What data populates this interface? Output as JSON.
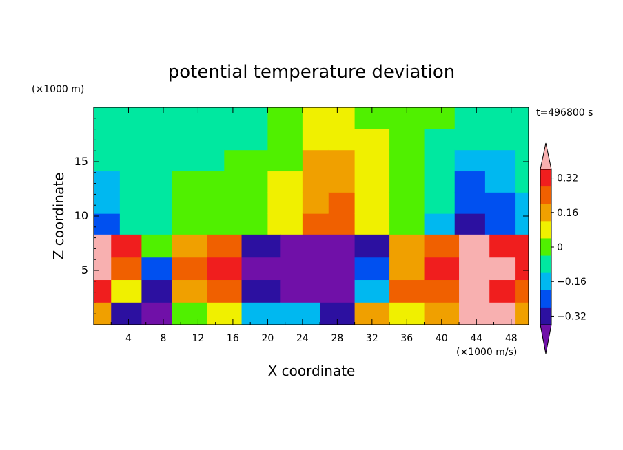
{
  "chart_data": {
    "type": "heatmap",
    "title": "potential temperature deviation",
    "xlabel": "X coordinate",
    "ylabel": "Z coordinate",
    "x_unit": "(×1000 m/s)",
    "y_unit": "(×1000 m)",
    "time_label": "t=496800 s",
    "xlim": [
      0,
      50
    ],
    "ylim": [
      0,
      20
    ],
    "x_ticks": [
      "4",
      "8",
      "12",
      "16",
      "20",
      "24",
      "28",
      "32",
      "36",
      "40",
      "44",
      "48"
    ],
    "x_tick_values": [
      4,
      8,
      12,
      16,
      20,
      24,
      28,
      32,
      36,
      40,
      44,
      48
    ],
    "y_ticks": [
      "5",
      "10",
      "15"
    ],
    "y_tick_values": [
      5,
      10,
      15
    ],
    "colorbar": {
      "levels": [
        -0.4,
        -0.32,
        -0.24,
        -0.16,
        -0.08,
        0,
        0.08,
        0.16,
        0.24,
        0.32,
        0.4
      ],
      "tick_labels": [
        "0.32",
        "0.16",
        "0",
        "−0.16",
        "−0.32"
      ],
      "tick_values": [
        0.32,
        0.16,
        0,
        -0.16,
        -0.32
      ],
      "colors": [
        "#7010a8",
        "#2c10a0",
        "#0050f0",
        "#00b8f0",
        "#00e8a0",
        "#50f000",
        "#f0f000",
        "#f0a000",
        "#f06000",
        "#f01e1e",
        "#f8b0b0"
      ]
    },
    "fields": {
      "upper_layer": {
        "z_range": [
          8.3,
          20
        ],
        "columns": [
          {
            "x": 0,
            "values": [
              -0.24,
              -0.16,
              -0.16,
              -0.08,
              -0.08,
              -0.08
            ]
          },
          {
            "x": 6,
            "values": [
              -0.08,
              -0.08,
              -0.08,
              -0.08,
              -0.08,
              -0.08
            ]
          },
          {
            "x": 12,
            "values": [
              0,
              0,
              0,
              -0.08,
              -0.08,
              -0.08
            ]
          },
          {
            "x": 18,
            "values": [
              0,
              0,
              0,
              0,
              -0.08,
              -0.08
            ]
          },
          {
            "x": 22,
            "values": [
              0.08,
              0.08,
              0.08,
              0,
              0,
              0
            ]
          },
          {
            "x": 26,
            "values": [
              0.24,
              0.16,
              0.16,
              0.16,
              0.08,
              0.08
            ]
          },
          {
            "x": 28,
            "values": [
              0.24,
              0.24,
              0.16,
              0.16,
              0.08,
              0.08
            ]
          },
          {
            "x": 32,
            "values": [
              0.08,
              0.08,
              0.08,
              0.08,
              0.08,
              0
            ]
          },
          {
            "x": 36,
            "values": [
              0,
              0,
              0,
              0,
              0,
              0
            ]
          },
          {
            "x": 40,
            "values": [
              -0.16,
              -0.08,
              -0.08,
              -0.08,
              -0.08,
              0
            ]
          },
          {
            "x": 43,
            "values": [
              -0.32,
              -0.24,
              -0.24,
              -0.16,
              -0.08,
              -0.08
            ]
          },
          {
            "x": 47,
            "values": [
              -0.24,
              -0.24,
              -0.16,
              -0.16,
              -0.08,
              -0.08
            ]
          },
          {
            "x": 50,
            "values": [
              -0.16,
              -0.16,
              -0.08,
              -0.08,
              -0.08,
              -0.08
            ]
          }
        ]
      },
      "lower_layer": {
        "z_range": [
          0,
          8.3
        ],
        "columns": [
          {
            "x": 0,
            "values": [
              0.16,
              0.32,
              0.4,
              0.4
            ]
          },
          {
            "x": 4,
            "values": [
              -0.32,
              0.08,
              0.24,
              0.32
            ]
          },
          {
            "x": 7,
            "values": [
              -0.4,
              -0.32,
              -0.24,
              0
            ]
          },
          {
            "x": 11,
            "values": [
              0,
              0.16,
              0.24,
              0.16
            ]
          },
          {
            "x": 15,
            "values": [
              0.08,
              0.24,
              0.32,
              0.24
            ]
          },
          {
            "x": 19,
            "values": [
              -0.16,
              -0.32,
              -0.4,
              -0.32
            ]
          },
          {
            "x": 24,
            "values": [
              -0.16,
              -0.4,
              -0.4,
              -0.4
            ]
          },
          {
            "x": 28,
            "values": [
              -0.32,
              -0.4,
              -0.4,
              -0.4
            ]
          },
          {
            "x": 32,
            "values": [
              0.16,
              -0.16,
              -0.24,
              -0.32
            ]
          },
          {
            "x": 36,
            "values": [
              0.08,
              0.24,
              0.16,
              0.16
            ]
          },
          {
            "x": 40,
            "values": [
              0.16,
              0.24,
              0.32,
              0.24
            ]
          },
          {
            "x": 44,
            "values": [
              0.4,
              0.4,
              0.4,
              0.4
            ]
          },
          {
            "x": 47,
            "values": [
              0.4,
              0.32,
              0.4,
              0.32
            ]
          },
          {
            "x": 50,
            "values": [
              0.16,
              0.24,
              0.32,
              0.32
            ]
          }
        ]
      }
    }
  }
}
